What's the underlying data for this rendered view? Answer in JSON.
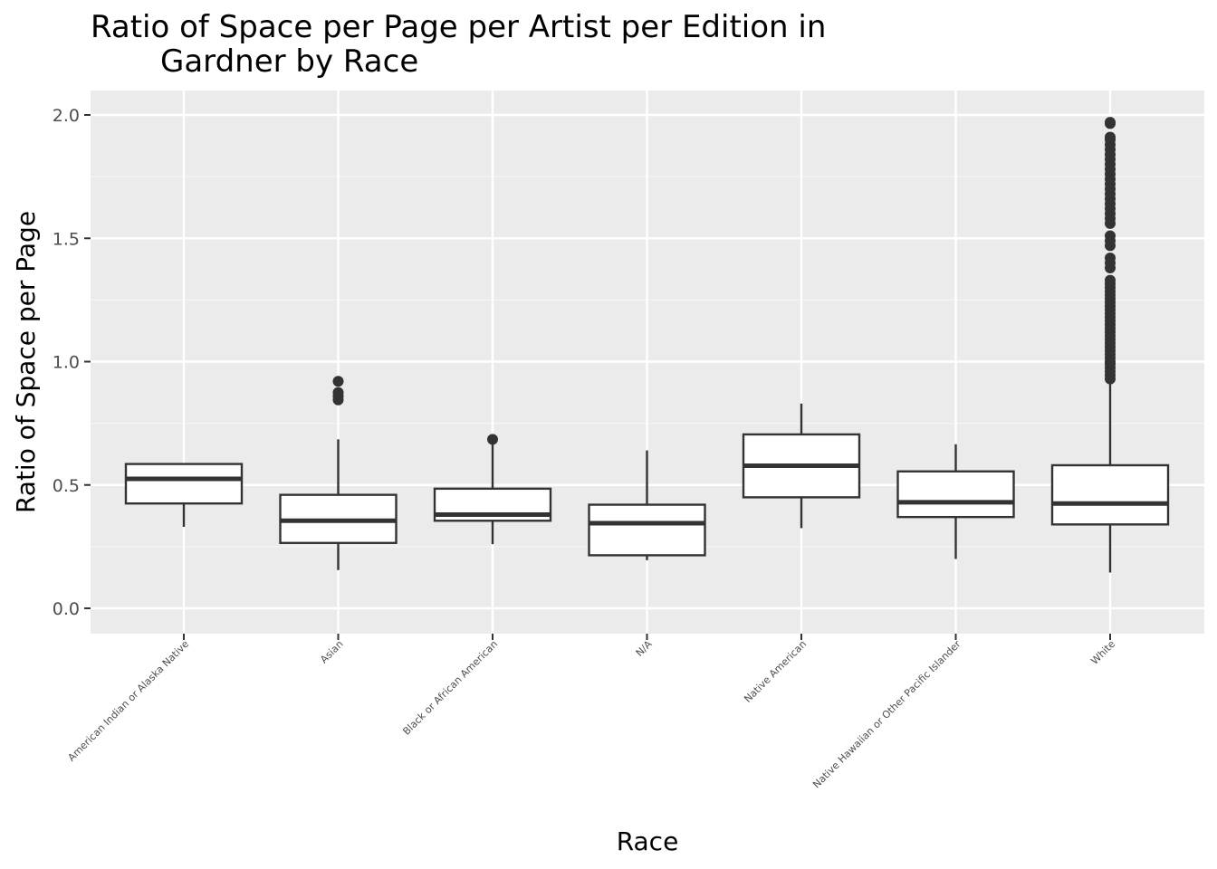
{
  "chart_data": {
    "type": "boxplot",
    "title_lines": [
      "Ratio of Space per Page per Artist per Edition in",
      "Gardner by Race"
    ],
    "xlabel": "Race",
    "ylabel": "Ratio of Space per Page",
    "ylim": [
      -0.1,
      2.1
    ],
    "yticks": [
      0.0,
      0.5,
      1.0,
      1.5,
      2.0
    ],
    "ytick_labels": [
      "0.0",
      "0.5",
      "1.0",
      "1.5",
      "2.0"
    ],
    "categories": [
      "American Indian or Alaska Native",
      "Asian",
      "Black or African American",
      "N/A",
      "Native American",
      "Native Hawaiian or Other Pacific Islander",
      "White"
    ],
    "boxes": [
      {
        "whisker_low": 0.33,
        "q1": 0.425,
        "median": 0.525,
        "q3": 0.585,
        "whisker_high": 0.585,
        "outliers": []
      },
      {
        "whisker_low": 0.155,
        "q1": 0.265,
        "median": 0.355,
        "q3": 0.46,
        "whisker_high": 0.685,
        "outliers": [
          0.845,
          0.86,
          0.875,
          0.92
        ]
      },
      {
        "whisker_low": 0.26,
        "q1": 0.355,
        "median": 0.38,
        "q3": 0.485,
        "whisker_high": 0.685,
        "outliers": [
          0.685
        ]
      },
      {
        "whisker_low": 0.195,
        "q1": 0.215,
        "median": 0.345,
        "q3": 0.42,
        "whisker_high": 0.64,
        "outliers": []
      },
      {
        "whisker_low": 0.325,
        "q1": 0.45,
        "median": 0.578,
        "q3": 0.705,
        "whisker_high": 0.83,
        "outliers": []
      },
      {
        "whisker_low": 0.2,
        "q1": 0.37,
        "median": 0.43,
        "q3": 0.555,
        "whisker_high": 0.665,
        "outliers": []
      },
      {
        "whisker_low": 0.145,
        "q1": 0.34,
        "median": 0.425,
        "q3": 0.58,
        "whisker_high": 0.93,
        "outliers": [
          0.93,
          0.945,
          0.96,
          0.975,
          0.99,
          1.0,
          1.015,
          1.03,
          1.045,
          1.06,
          1.075,
          1.09,
          1.105,
          1.12,
          1.135,
          1.15,
          1.165,
          1.18,
          1.195,
          1.21,
          1.225,
          1.24,
          1.255,
          1.27,
          1.285,
          1.3,
          1.315,
          1.33,
          1.38,
          1.4,
          1.42,
          1.47,
          1.49,
          1.51,
          1.56,
          1.58,
          1.6,
          1.62,
          1.64,
          1.66,
          1.68,
          1.7,
          1.72,
          1.74,
          1.76,
          1.78,
          1.8,
          1.82,
          1.84,
          1.86,
          1.88,
          1.9,
          1.91,
          1.965,
          1.97
        ]
      }
    ],
    "grid": true,
    "legend": "none"
  },
  "colors": {
    "panel_bg": "#ebebeb",
    "grid_major": "#ffffff",
    "grid_minor": "#f5f5f5",
    "box_stroke": "#333333",
    "box_fill": "#ffffff",
    "tick_text": "#4d4d4d",
    "tick_mark": "#333333"
  }
}
